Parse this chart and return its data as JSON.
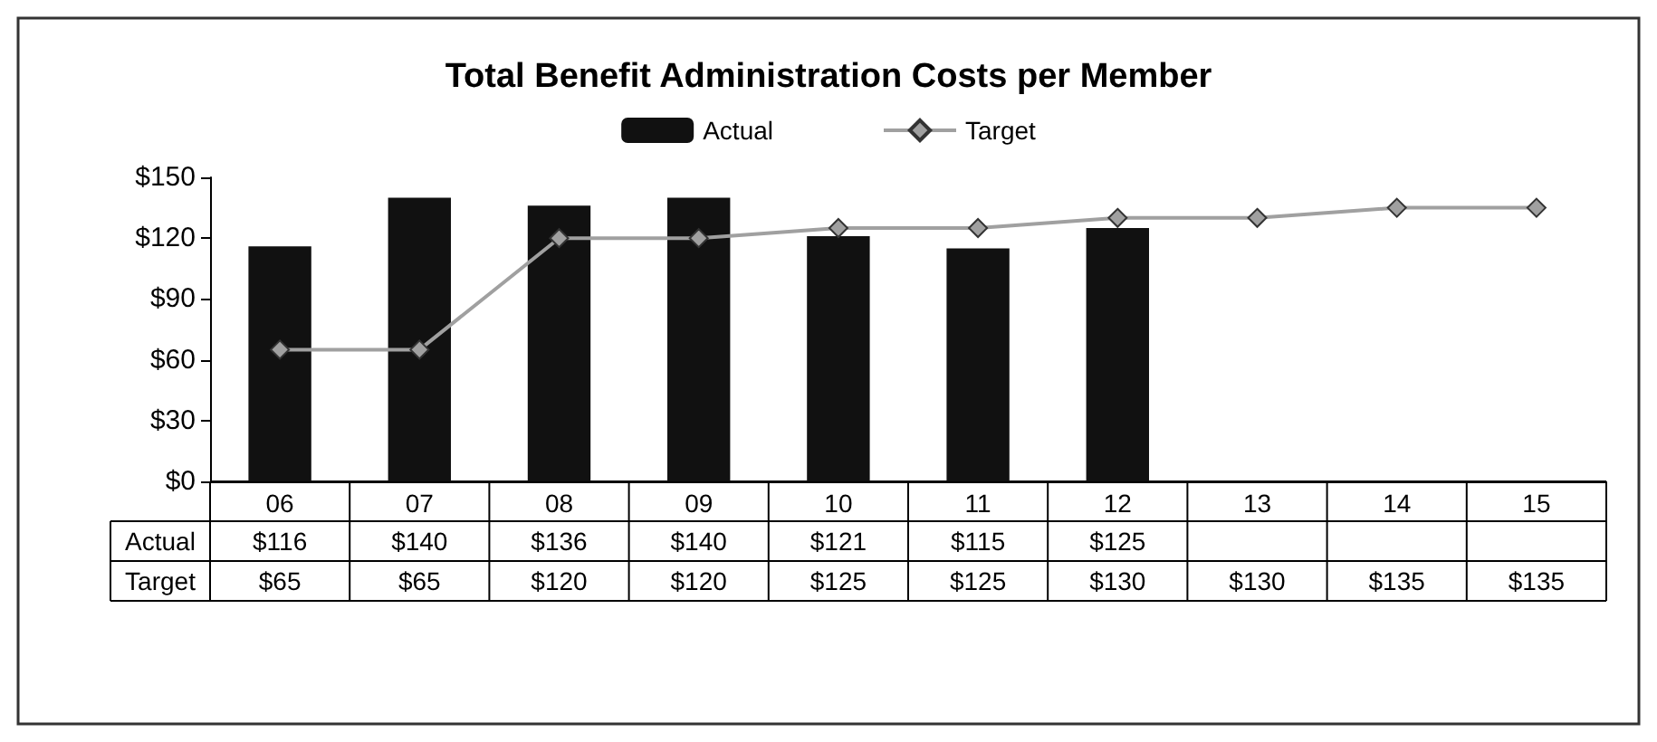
{
  "chart_data": {
    "type": "bar",
    "title": "Total Benefit Administration Costs per Member",
    "categories": [
      "06",
      "07",
      "08",
      "09",
      "10",
      "11",
      "12",
      "13",
      "14",
      "15"
    ],
    "series": [
      {
        "name": "Actual",
        "color": "#111111",
        "values": [
          116,
          140,
          136,
          140,
          121,
          115,
          125,
          null,
          null,
          null
        ],
        "value_labels": [
          "$116",
          "$140",
          "$136",
          "$140",
          "$121",
          "$115",
          "$125",
          null,
          null,
          null
        ]
      },
      {
        "name": "Target",
        "type": "line",
        "color": "#a0a0a0",
        "values": [
          65,
          65,
          120,
          120,
          125,
          125,
          130,
          130,
          135,
          135
        ],
        "value_labels": [
          "$65",
          "$65",
          "$120",
          "$120",
          "$125",
          "$125",
          "$130",
          "$130",
          "$135",
          "$135"
        ]
      }
    ],
    "ylim": [
      0,
      150
    ],
    "yticks": [
      {
        "value": 0,
        "label": "$0"
      },
      {
        "value": 30,
        "label": "$30"
      },
      {
        "value": 60,
        "label": "$60"
      },
      {
        "value": 90,
        "label": "$90"
      },
      {
        "value": 120,
        "label": "$120"
      },
      {
        "value": 150,
        "label": "$150"
      }
    ],
    "grid": false,
    "legend": "top",
    "marker": "diamond",
    "line_style": "solid"
  }
}
